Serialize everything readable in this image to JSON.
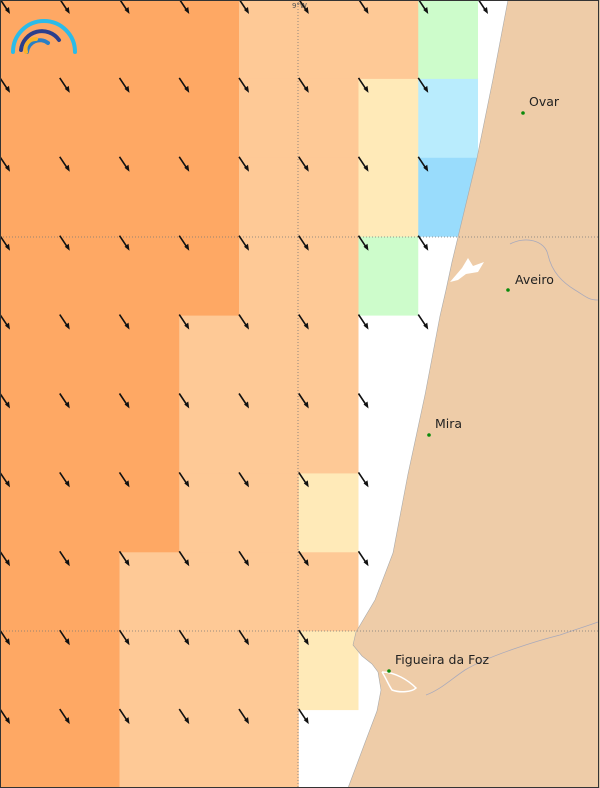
{
  "map": {
    "grid_label": "9°W",
    "palette": {
      "D": "#fea864",
      "L": "#fec996",
      "Y": "#ffeab8",
      "G": "#cdfccb",
      "B": "#b9ecfd",
      "C": "#99dcfc",
      "W": "#ffffff"
    },
    "land_color": "#eecca8",
    "cells": [
      "DDDDLLLGW",
      "DDDDLLYBW",
      "DDDDLLYCW",
      "DDDDLLGWW",
      "DDDLLLWWW",
      "DDDLLLWWW",
      "DDDLLYWWW",
      "DDLLLLWWW",
      "DDLLLYWWW",
      "DDLLLWWWW"
    ],
    "wind_direction": "north-west to south-east",
    "cities": [
      {
        "name": "Ovar"
      },
      {
        "name": "Aveiro"
      },
      {
        "name": "Mira"
      },
      {
        "name": "Figueira da Foz"
      }
    ]
  }
}
